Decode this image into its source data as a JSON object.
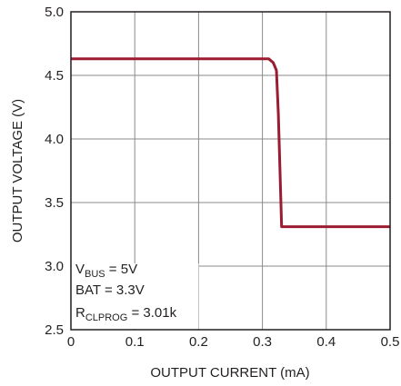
{
  "chart_data": {
    "type": "line",
    "xlabel": "OUTPUT CURRENT (mA)",
    "ylabel": "OUTPUT VOLTAGE (V)",
    "xlim": [
      0,
      0.5
    ],
    "ylim": [
      2.5,
      5.0
    ],
    "x_ticks": [
      "0",
      "0.1",
      "0.2",
      "0.3",
      "0.4",
      "0.5"
    ],
    "y_ticks": [
      "2.5",
      "3.0",
      "3.5",
      "4.0",
      "4.5",
      "5.0"
    ],
    "grid": true,
    "series": [
      {
        "color": "#9b1b30",
        "x": [
          0,
          0.31,
          0.317,
          0.322,
          0.325,
          0.33,
          0.5
        ],
        "y": [
          4.63,
          4.63,
          4.6,
          4.54,
          4.2,
          3.31,
          3.31
        ]
      }
    ],
    "annotation": {
      "line1": {
        "main": "V",
        "sub": "BUS",
        "rest": " = 5V"
      },
      "line2": "BAT = 3.3V",
      "line3": {
        "main": "R",
        "sub": "CLPROG",
        "rest": " = 3.01k"
      }
    }
  }
}
